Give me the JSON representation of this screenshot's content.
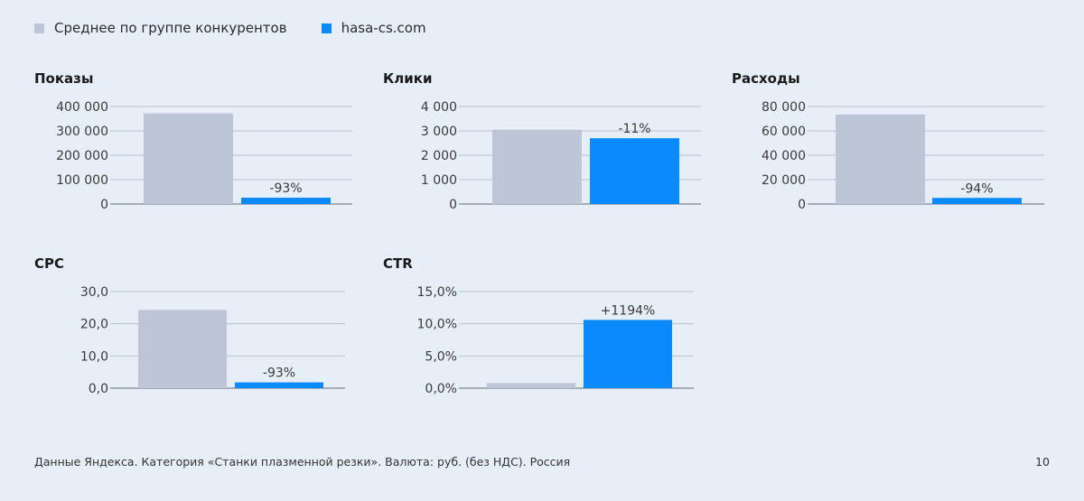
{
  "legend": [
    {
      "label": "Среднее по группе конкурентов",
      "color": "#bcc6d7"
    },
    {
      "label": "hasa-cs.com",
      "color": "#0a8afc"
    }
  ],
  "chart_data": [
    {
      "type": "bar",
      "title": "Показы",
      "ticks": [
        "400 000",
        "300 000",
        "200 000",
        "100 000",
        "0"
      ],
      "ylim": [
        0,
        400000
      ],
      "categories": [
        "Среднее по группе конкурентов",
        "hasa-cs.com"
      ],
      "values": [
        372000,
        26000
      ],
      "data_label": "-93%"
    },
    {
      "type": "bar",
      "title": "Клики",
      "ticks": [
        "4 000",
        "3 000",
        "2 000",
        "1 000",
        "0"
      ],
      "ylim": [
        0,
        4000
      ],
      "categories": [
        "Среднее по группе конкурентов",
        "hasa-cs.com"
      ],
      "values": [
        3050,
        2700
      ],
      "data_label": "-11%"
    },
    {
      "type": "bar",
      "title": "Расходы",
      "ticks": [
        "80 000",
        "60 000",
        "40 000",
        "20 000",
        "0"
      ],
      "ylim": [
        0,
        80000
      ],
      "categories": [
        "Среднее по группе конкурентов",
        "hasa-cs.com"
      ],
      "values": [
        73500,
        5000
      ],
      "data_label": "-94%"
    },
    {
      "type": "bar",
      "title": "CPC",
      "ticks": [
        "30,0",
        "20,0",
        "10,0",
        "0,0"
      ],
      "ylim": [
        0,
        30
      ],
      "categories": [
        "Среднее по группе конкурентов",
        "hasa-cs.com"
      ],
      "values": [
        24.3,
        1.8
      ],
      "data_label": "-93%"
    },
    {
      "type": "bar",
      "title": "CTR",
      "ticks": [
        "15,0%",
        "10,0%",
        "5,0%",
        "0,0%"
      ],
      "ylim": [
        0,
        15
      ],
      "categories": [
        "Среднее по группе конкурентов",
        "hasa-cs.com"
      ],
      "values": [
        0.8,
        10.6
      ],
      "data_label": "+1194%"
    }
  ],
  "footer": {
    "source": "Данные Яндекса. Категория «Станки плазменной резки». Валюта: руб. (без НДС). Россия",
    "page": "10"
  }
}
